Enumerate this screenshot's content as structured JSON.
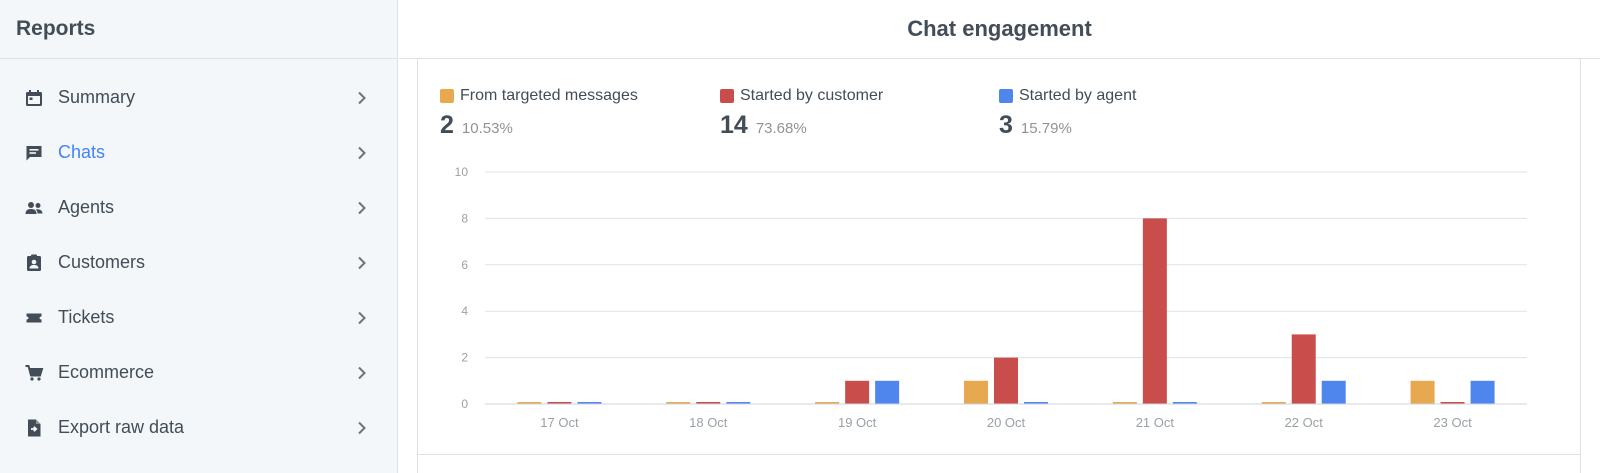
{
  "sidebar": {
    "title": "Reports",
    "items": [
      {
        "label": "Summary",
        "icon": "calendar-icon"
      },
      {
        "label": "Chats",
        "icon": "chat-icon",
        "active": true
      },
      {
        "label": "Agents",
        "icon": "people-icon"
      },
      {
        "label": "Customers",
        "icon": "contact-card-icon"
      },
      {
        "label": "Tickets",
        "icon": "ticket-icon"
      },
      {
        "label": "Ecommerce",
        "icon": "cart-icon"
      },
      {
        "label": "Export raw data",
        "icon": "file-export-icon"
      }
    ]
  },
  "main": {
    "title": "Chat engagement"
  },
  "legend": [
    {
      "label": "From targeted messages",
      "count": "2",
      "percent": "10.53%"
    },
    {
      "label": "Started by customer",
      "count": "14",
      "percent": "73.68%"
    },
    {
      "label": "Started by agent",
      "count": "3",
      "percent": "15.79%"
    }
  ],
  "colors": {
    "targeted": "#e8a84f",
    "customer": "#c94d4b",
    "agent": "#4e86ee",
    "accent": "#4384f5"
  },
  "chart_data": {
    "type": "bar",
    "categories": [
      "17 Oct",
      "18 Oct",
      "19 Oct",
      "20 Oct",
      "21 Oct",
      "22 Oct",
      "23 Oct"
    ],
    "series": [
      {
        "name": "From targeted messages",
        "values": [
          0,
          0,
          0,
          1,
          0,
          0,
          1
        ]
      },
      {
        "name": "Started by customer",
        "values": [
          0,
          0,
          1,
          2,
          8,
          3,
          0
        ]
      },
      {
        "name": "Started by agent",
        "values": [
          0,
          0,
          1,
          0,
          0,
          1,
          1
        ]
      }
    ],
    "yticks": [
      0,
      2,
      4,
      6,
      8,
      10
    ],
    "ylim": [
      0,
      10
    ],
    "grid": true,
    "title": "",
    "xlabel": "",
    "ylabel": ""
  }
}
